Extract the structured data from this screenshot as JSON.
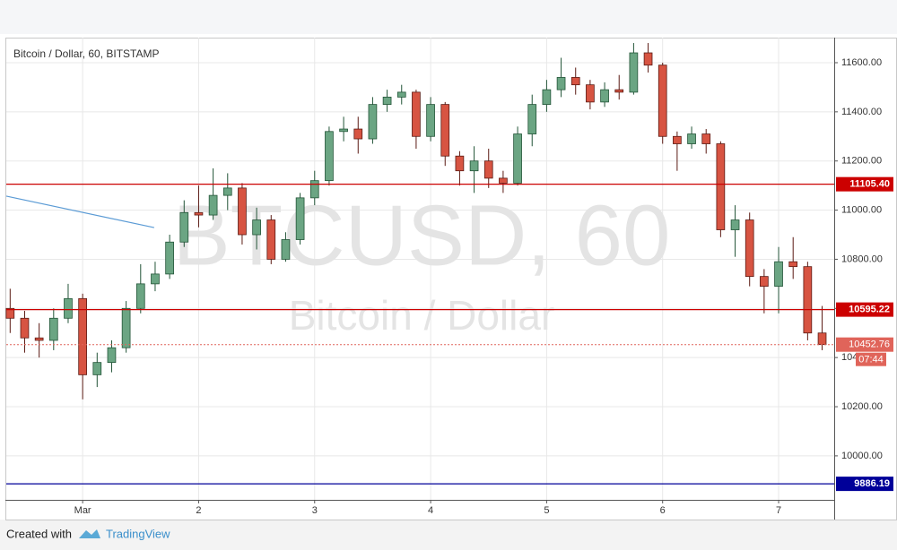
{
  "chart_data": {
    "type": "candlestick",
    "title": "Bitcoin / Dollar, 60, BITSTAMP",
    "watermark": "BTCUSD, 60",
    "watermark_subtitle": "Bitcoin / Dollar",
    "x": [
      -15,
      -12,
      -9,
      -6,
      -3,
      0,
      3,
      6,
      9,
      12,
      15,
      18,
      21,
      24,
      27,
      30,
      33,
      36,
      39,
      42,
      45,
      48,
      51,
      54,
      57,
      60,
      63,
      66,
      69,
      72,
      75,
      78,
      81,
      84,
      87,
      90,
      93,
      96,
      99,
      102,
      105,
      108,
      111,
      114,
      117,
      120,
      123,
      126,
      129,
      132,
      135,
      138,
      141,
      144,
      147,
      150,
      153
    ],
    "open": [
      10600,
      10560,
      10480,
      10470,
      10560,
      10640,
      10330,
      10380,
      10440,
      10600,
      10700,
      10740,
      10870,
      10990,
      10980,
      11060,
      11090,
      10900,
      10960,
      10800,
      10880,
      11050,
      11120,
      11320,
      11330,
      11290,
      11430,
      11460,
      11480,
      11300,
      11430,
      11220,
      11160,
      11200,
      11130,
      11110,
      11310,
      11430,
      11490,
      11540,
      11510,
      11440,
      11490,
      11480,
      11640,
      11590,
      11300,
      11270,
      11310,
      11270,
      10920,
      10960,
      10730,
      10690,
      10790,
      10770,
      10500
    ],
    "high": [
      10680,
      10590,
      10540,
      10600,
      10700,
      10660,
      10420,
      10470,
      10630,
      10780,
      10790,
      10900,
      11040,
      11100,
      11170,
      11150,
      11110,
      11010,
      10980,
      10910,
      11070,
      11160,
      11340,
      11380,
      11380,
      11460,
      11490,
      11510,
      11490,
      11460,
      11440,
      11240,
      11260,
      11250,
      11160,
      11340,
      11470,
      11530,
      11620,
      11580,
      11530,
      11520,
      11550,
      11680,
      11680,
      11600,
      11320,
      11340,
      11330,
      11280,
      11020,
      10990,
      10760,
      10850,
      10890,
      10790,
      10610
    ],
    "low": [
      10500,
      10420,
      10400,
      10430,
      10540,
      10230,
      10280,
      10340,
      10420,
      10580,
      10670,
      10720,
      10850,
      10930,
      10960,
      11000,
      10860,
      10840,
      10780,
      10790,
      10860,
      11020,
      11100,
      11280,
      11230,
      11270,
      11400,
      11430,
      11250,
      11280,
      11180,
      11100,
      11070,
      11090,
      11070,
      11100,
      11260,
      11400,
      11460,
      11470,
      11410,
      11420,
      11450,
      11470,
      11560,
      11270,
      11160,
      11250,
      11230,
      10890,
      10810,
      10690,
      10580,
      10580,
      10720,
      10470,
      10430
    ],
    "close": [
      10560,
      10480,
      10470,
      10560,
      10640,
      10330,
      10380,
      10440,
      10600,
      10700,
      10740,
      10870,
      10990,
      10980,
      11060,
      11090,
      10900,
      10960,
      10800,
      10880,
      11050,
      11120,
      11320,
      11330,
      11290,
      11430,
      11460,
      11480,
      11300,
      11430,
      11220,
      11160,
      11200,
      11130,
      11110,
      11310,
      11430,
      11490,
      11540,
      11510,
      11440,
      11490,
      11480,
      11640,
      11590,
      11300,
      11270,
      11310,
      11270,
      10920,
      10960,
      10730,
      10690,
      10790,
      10770,
      10500,
      10452.76
    ],
    "up_color": "#6ba583",
    "down_color": "#d75442",
    "xlim": [
      -15.8,
      155.5
    ],
    "xticks": [
      {
        "value": 0,
        "label": "Mar"
      },
      {
        "value": 24,
        "label": "2"
      },
      {
        "value": 48,
        "label": "3"
      },
      {
        "value": 72,
        "label": "4"
      },
      {
        "value": 96,
        "label": "5"
      },
      {
        "value": 120,
        "label": "6"
      },
      {
        "value": 144,
        "label": "7"
      }
    ],
    "ylim": [
      9821,
      11702
    ],
    "yticks": [
      {
        "value": 10000,
        "label": "10000.00"
      },
      {
        "value": 10200,
        "label": "10200.00"
      },
      {
        "value": 10400,
        "label": "10400.00"
      },
      {
        "value": 10600,
        "label": "10600.00"
      },
      {
        "value": 10800,
        "label": "10800.00"
      },
      {
        "value": 11000,
        "label": "11000.00"
      },
      {
        "value": 11200,
        "label": "11200.00"
      },
      {
        "value": 11400,
        "label": "11400.00"
      },
      {
        "value": 11600,
        "label": "11600.00"
      }
    ],
    "grid": true,
    "hlines": [
      {
        "value": 11105.4,
        "label": "11105.40",
        "color": "#cc0000"
      },
      {
        "value": 10595.22,
        "label": "10595.22",
        "color": "#cc0000"
      },
      {
        "value": 9886.19,
        "label": "9886.19",
        "color": "#000099"
      }
    ],
    "last_price": {
      "value": 10452.76,
      "label": "10452.76",
      "countdown": "07:44",
      "color": "#e0645a"
    },
    "trendline": {
      "x": [
        -15.8,
        14.8
      ],
      "y": [
        11057,
        10929
      ],
      "color": "#5b9bd5"
    }
  },
  "footer": {
    "created_with": "Created with",
    "brand": "TradingView"
  }
}
